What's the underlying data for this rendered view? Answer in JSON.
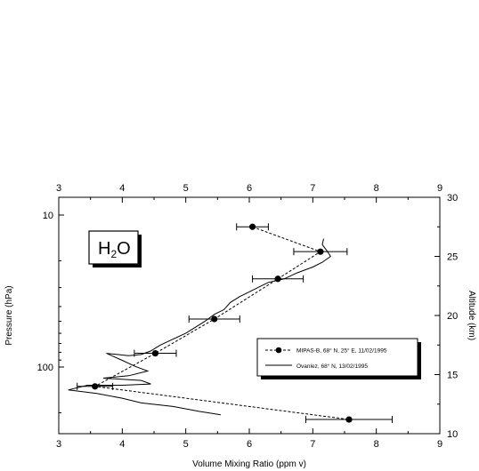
{
  "chart_data": {
    "type": "line",
    "title_box": {
      "main": "H",
      "sub": "2",
      "tail": "O"
    },
    "xlabel": "Volume Mixing Ratio (ppm v)",
    "ylabel_left": "Pressure (hPa)",
    "ylabel_right": "Altitude (km)",
    "xlim": [
      3,
      9
    ],
    "x_ticks": [
      "3",
      "4",
      "5",
      "6",
      "7",
      "8",
      "9"
    ],
    "y_left_scale": "log",
    "y_left_ticks": [
      {
        "value": 10,
        "label": "10"
      },
      {
        "value": 100,
        "label": "100"
      }
    ],
    "y_right_lim": [
      10,
      30
    ],
    "y_right_ticks": [
      "10",
      "15",
      "20",
      "25",
      "30"
    ],
    "grid": false,
    "legend_position": "lower-right",
    "series": [
      {
        "name": "MIPAS-B, 68° N, 25° E, 11/02/1995",
        "style": "dashed-with-markers",
        "color": "#000000",
        "points": [
          {
            "vmr": 6.05,
            "alt": 27.5,
            "err": 0.25
          },
          {
            "vmr": 7.12,
            "alt": 25.4,
            "err": 0.42
          },
          {
            "vmr": 6.45,
            "alt": 23.1,
            "err": 0.4
          },
          {
            "vmr": 5.45,
            "alt": 19.7,
            "err": 0.4
          },
          {
            "vmr": 4.52,
            "alt": 16.8,
            "err": 0.33
          },
          {
            "vmr": 3.57,
            "alt": 14.0,
            "err": 0.28
          },
          {
            "vmr": 7.57,
            "alt": 11.2,
            "err": 0.68
          }
        ]
      },
      {
        "name": "Ovanlez, 68° N, 13/02/1995",
        "style": "solid",
        "color": "#000000",
        "points": [
          {
            "vmr": 7.17,
            "alt": 26.5
          },
          {
            "vmr": 7.15,
            "alt": 26.0
          },
          {
            "vmr": 7.22,
            "alt": 25.5
          },
          {
            "vmr": 7.28,
            "alt": 25.0
          },
          {
            "vmr": 7.15,
            "alt": 24.5
          },
          {
            "vmr": 7.0,
            "alt": 24.1
          },
          {
            "vmr": 6.75,
            "alt": 23.6
          },
          {
            "vmr": 6.55,
            "alt": 23.1
          },
          {
            "vmr": 6.3,
            "alt": 22.8
          },
          {
            "vmr": 6.15,
            "alt": 22.4
          },
          {
            "vmr": 6.0,
            "alt": 22.0
          },
          {
            "vmr": 5.85,
            "alt": 21.6
          },
          {
            "vmr": 5.7,
            "alt": 21.1
          },
          {
            "vmr": 5.6,
            "alt": 20.5
          },
          {
            "vmr": 5.45,
            "alt": 20.1
          },
          {
            "vmr": 5.3,
            "alt": 19.5
          },
          {
            "vmr": 5.15,
            "alt": 19.0
          },
          {
            "vmr": 5.0,
            "alt": 18.5
          },
          {
            "vmr": 4.8,
            "alt": 18.0
          },
          {
            "vmr": 4.6,
            "alt": 17.5
          },
          {
            "vmr": 4.45,
            "alt": 17.0
          },
          {
            "vmr": 4.3,
            "alt": 16.7
          },
          {
            "vmr": 4.1,
            "alt": 16.6
          },
          {
            "vmr": 3.75,
            "alt": 16.8
          },
          {
            "vmr": 4.0,
            "alt": 16.2
          },
          {
            "vmr": 4.2,
            "alt": 15.7
          },
          {
            "vmr": 4.4,
            "alt": 15.3
          },
          {
            "vmr": 4.1,
            "alt": 14.9
          },
          {
            "vmr": 3.7,
            "alt": 14.7
          },
          {
            "vmr": 4.3,
            "alt": 14.5
          },
          {
            "vmr": 4.45,
            "alt": 14.2
          },
          {
            "vmr": 4.0,
            "alt": 14.1
          },
          {
            "vmr": 3.45,
            "alt": 14.1
          },
          {
            "vmr": 3.15,
            "alt": 13.7
          },
          {
            "vmr": 3.6,
            "alt": 13.4
          },
          {
            "vmr": 4.0,
            "alt": 13.0
          },
          {
            "vmr": 4.3,
            "alt": 12.6
          },
          {
            "vmr": 4.8,
            "alt": 12.3
          },
          {
            "vmr": 5.2,
            "alt": 11.9
          },
          {
            "vmr": 5.55,
            "alt": 11.6
          }
        ]
      }
    ]
  }
}
